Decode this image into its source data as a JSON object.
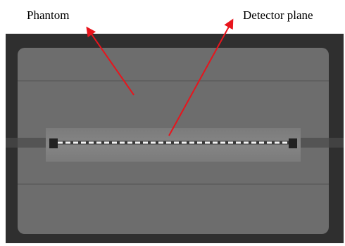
{
  "labels": {
    "phantom": "Phantom",
    "detector_plane": "Detector plane"
  }
}
